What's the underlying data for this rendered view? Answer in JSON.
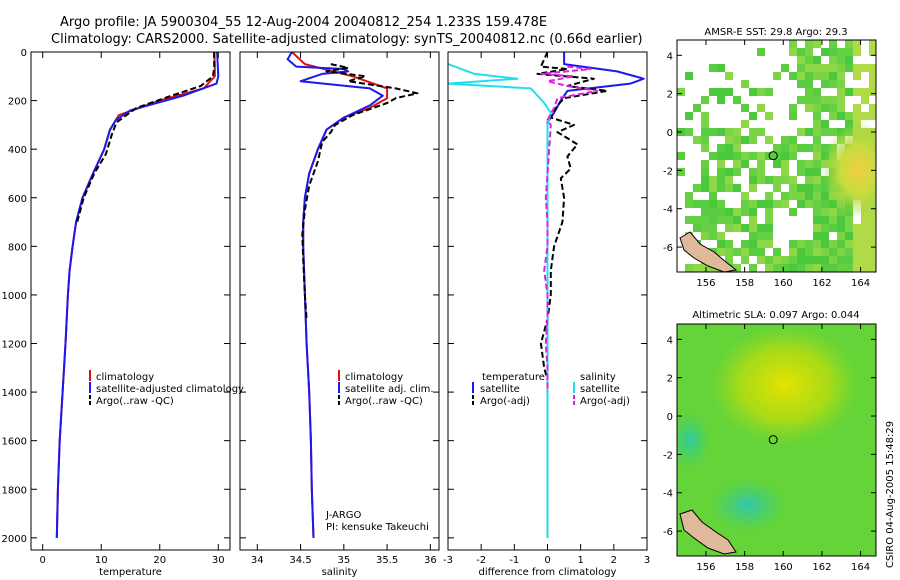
{
  "title": {
    "line1": "Argo profile: JA 5900304_55 12-Aug-2004 20040812_254 1.233S 159.478E",
    "line2": "Climatology: CARS2000. Satellite-adjusted climatology: synTS_20040812.nc (0.66d earlier)"
  },
  "colors": {
    "climatology": "#dd1111",
    "satellite": "#1a1aee",
    "argo": "#000000",
    "satellite_salinity": "#22ddee",
    "argo_salinity": "#dd22dd"
  },
  "chart_data": [
    {
      "type": "line",
      "id": "temperature",
      "xlabel": "temperature",
      "ylabel": "",
      "xlim": [
        -2,
        32
      ],
      "ylim": [
        2050,
        0
      ],
      "xticks": [
        0,
        10,
        20,
        30
      ],
      "yticks": [
        0,
        200,
        400,
        600,
        800,
        1000,
        1200,
        1400,
        1600,
        1800,
        2000
      ],
      "legend": [
        "climatology",
        "satellite-adjusted climatology",
        "Argo(..raw -QC)"
      ],
      "series": [
        {
          "name": "climatology",
          "color_key": "climatology",
          "dash": "solid",
          "points": [
            [
              29.3,
              0
            ],
            [
              29.4,
              50
            ],
            [
              29.4,
              100
            ],
            [
              27.5,
              150
            ],
            [
              20,
              200
            ],
            [
              13,
              260
            ],
            [
              11.5,
              320
            ],
            [
              10.5,
              400
            ],
            [
              8.6,
              500
            ],
            [
              6.8,
              600
            ],
            [
              5.7,
              700
            ],
            [
              5.1,
              800
            ],
            [
              4.6,
              900
            ],
            [
              4.3,
              1000
            ],
            [
              3.9,
              1200
            ],
            [
              3.4,
              1400
            ],
            [
              2.9,
              1600
            ],
            [
              2.6,
              1800
            ],
            [
              2.4,
              2000
            ]
          ]
        },
        {
          "name": "satellite-adjusted climatology",
          "color_key": "satellite",
          "dash": "solid",
          "points": [
            [
              29.8,
              0
            ],
            [
              29.9,
              50
            ],
            [
              30.0,
              100
            ],
            [
              29.7,
              130
            ],
            [
              24,
              180
            ],
            [
              15,
              240
            ],
            [
              12.5,
              280
            ],
            [
              11.5,
              320
            ],
            [
              10.5,
              400
            ],
            [
              8.6,
              500
            ],
            [
              6.8,
              600
            ],
            [
              5.7,
              700
            ],
            [
              5.1,
              800
            ],
            [
              4.6,
              900
            ],
            [
              4.3,
              1000
            ],
            [
              3.9,
              1200
            ],
            [
              3.4,
              1400
            ],
            [
              2.9,
              1600
            ],
            [
              2.6,
              1800
            ],
            [
              2.4,
              2000
            ]
          ]
        },
        {
          "name": "Argo(..raw -QC)",
          "color_key": "argo",
          "dash": "dashed",
          "points": [
            [
              29.3,
              0
            ],
            [
              29.3,
              60
            ],
            [
              29.1,
              100
            ],
            [
              27,
              140
            ],
            [
              22,
              180
            ],
            [
              16,
              230
            ],
            [
              12.6,
              290
            ],
            [
              11.8,
              340
            ],
            [
              10.8,
              420
            ],
            [
              8.8,
              500
            ],
            [
              7,
              600
            ],
            [
              5.9,
              700
            ]
          ]
        }
      ]
    },
    {
      "type": "line",
      "id": "salinity",
      "xlabel": "salinity",
      "ylabel": "",
      "xlim": [
        33.8,
        36.1
      ],
      "ylim": [
        2050,
        0
      ],
      "xticks": [
        34,
        34.5,
        35,
        35.5,
        36
      ],
      "yticks": [
        0,
        200,
        400,
        600,
        800,
        1000,
        1200,
        1400,
        1600,
        1800,
        2000
      ],
      "legend": [
        "climatology",
        "satellite adj. clim.",
        "Argo(..raw -QC)"
      ],
      "annotations": [
        "J-ARGO",
        "PI: kensuke Takeuchi"
      ],
      "series": [
        {
          "name": "climatology",
          "color_key": "climatology",
          "dash": "solid",
          "points": [
            [
              34.4,
              0
            ],
            [
              34.55,
              50
            ],
            [
              35.1,
              100
            ],
            [
              35.5,
              150
            ],
            [
              35.5,
              190
            ],
            [
              35.3,
              230
            ],
            [
              35.0,
              270
            ],
            [
              34.8,
              320
            ],
            [
              34.7,
              400
            ],
            [
              34.6,
              500
            ],
            [
              34.55,
              600
            ],
            [
              34.53,
              700
            ],
            [
              34.53,
              800
            ],
            [
              34.55,
              1000
            ],
            [
              34.57,
              1200
            ],
            [
              34.6,
              1400
            ],
            [
              34.62,
              1600
            ],
            [
              34.63,
              1800
            ],
            [
              34.65,
              2000
            ]
          ]
        },
        {
          "name": "satellite adj. clim.",
          "color_key": "satellite",
          "dash": "solid",
          "points": [
            [
              34.4,
              0
            ],
            [
              34.35,
              30
            ],
            [
              34.45,
              60
            ],
            [
              35.0,
              70
            ],
            [
              35.05,
              80
            ],
            [
              34.75,
              90
            ],
            [
              34.5,
              120
            ],
            [
              35.3,
              150
            ],
            [
              35.45,
              180
            ],
            [
              35.3,
              220
            ],
            [
              35.0,
              270
            ],
            [
              34.8,
              320
            ],
            [
              34.7,
              400
            ],
            [
              34.6,
              500
            ],
            [
              34.55,
              600
            ],
            [
              34.53,
              700
            ],
            [
              34.53,
              800
            ],
            [
              34.55,
              1000
            ],
            [
              34.57,
              1200
            ],
            [
              34.6,
              1400
            ],
            [
              34.62,
              1600
            ],
            [
              34.63,
              1800
            ],
            [
              34.65,
              2000
            ]
          ]
        },
        {
          "name": "Argo(..raw -QC)",
          "color_key": "argo",
          "dash": "dashed",
          "points": [
            [
              34.85,
              50
            ],
            [
              35.05,
              65
            ],
            [
              34.8,
              80
            ],
            [
              35.25,
              100
            ],
            [
              35.05,
              120
            ],
            [
              35.6,
              150
            ],
            [
              35.85,
              170
            ],
            [
              35.6,
              190
            ],
            [
              35.5,
              210
            ],
            [
              35.1,
              260
            ],
            [
              34.9,
              300
            ],
            [
              34.85,
              330
            ],
            [
              34.75,
              370
            ],
            [
              34.7,
              450
            ],
            [
              34.6,
              550
            ],
            [
              34.55,
              650
            ],
            [
              34.52,
              750
            ],
            [
              34.53,
              850
            ],
            [
              34.55,
              1000
            ],
            [
              34.57,
              1100
            ]
          ]
        }
      ]
    },
    {
      "type": "line",
      "id": "difference",
      "xlabel": "difference from climatology",
      "ylabel": "",
      "xlim": [
        -3,
        3
      ],
      "ylim": [
        2050,
        0
      ],
      "xticks": [
        -3,
        -2,
        -1,
        0,
        1,
        2,
        3
      ],
      "yticks": [
        0,
        200,
        400,
        600,
        800,
        1000,
        1200,
        1400,
        1600,
        1800,
        2000
      ],
      "legend_temperature_title": "temperature",
      "legend_salinity_title": "salinity",
      "legend": [
        "satellite",
        "Argo(-adj)",
        "satellite",
        "Argo(-adj)"
      ],
      "series": [
        {
          "name": "temperature satellite",
          "color_key": "satellite",
          "dash": "solid",
          "points": [
            [
              0.5,
              0
            ],
            [
              0.5,
              50
            ],
            [
              2.1,
              80
            ],
            [
              2.9,
              110
            ],
            [
              2.5,
              130
            ],
            [
              0.6,
              160
            ],
            [
              0.4,
              200
            ],
            [
              0.2,
              250
            ],
            [
              0,
              290
            ],
            [
              0,
              400
            ],
            [
              0,
              600
            ],
            [
              0,
              1000
            ],
            [
              0,
              1500
            ],
            [
              0,
              2000
            ]
          ]
        },
        {
          "name": "temperature Argo(-adj)",
          "color_key": "argo",
          "dash": "dashed",
          "points": [
            [
              0,
              0
            ],
            [
              -0.2,
              60
            ],
            [
              0.6,
              70
            ],
            [
              -0.3,
              90
            ],
            [
              1.4,
              110
            ],
            [
              0.6,
              140
            ],
            [
              1.8,
              160
            ],
            [
              0.5,
              190
            ],
            [
              0.3,
              220
            ],
            [
              0.1,
              270
            ],
            [
              0.8,
              300
            ],
            [
              0.3,
              330
            ],
            [
              0.9,
              380
            ],
            [
              0.6,
              430
            ],
            [
              0.7,
              480
            ],
            [
              0.4,
              520
            ],
            [
              0.5,
              600
            ],
            [
              0.45,
              700
            ],
            [
              0.2,
              800
            ],
            [
              0.1,
              900
            ],
            [
              0.1,
              1000
            ],
            [
              0,
              1100
            ],
            [
              -0.2,
              1200
            ],
            [
              -0.1,
              1300
            ],
            [
              0,
              1350
            ]
          ]
        },
        {
          "name": "salinity satellite",
          "color_key": "satellite_salinity",
          "dash": "solid",
          "points": [
            [
              -3,
              50
            ],
            [
              -2.2,
              90
            ],
            [
              -0.9,
              110
            ],
            [
              -3,
              130
            ],
            [
              -0.5,
              150
            ],
            [
              -0.1,
              210
            ],
            [
              0.1,
              250
            ],
            [
              0,
              300
            ],
            [
              0,
              400
            ],
            [
              0,
              600
            ],
            [
              0,
              1000
            ],
            [
              0,
              1500
            ],
            [
              0,
              2000
            ]
          ]
        },
        {
          "name": "salinity Argo(-adj)",
          "color_key": "argo_salinity",
          "dash": "dashed",
          "points": [
            [
              0.6,
              60
            ],
            [
              1.3,
              70
            ],
            [
              -0.2,
              90
            ],
            [
              0.8,
              100
            ],
            [
              0,
              120
            ],
            [
              0.6,
              140
            ],
            [
              1.5,
              160
            ],
            [
              0.3,
              190
            ],
            [
              0.2,
              230
            ],
            [
              0,
              280
            ],
            [
              0.1,
              300
            ],
            [
              0.05,
              400
            ],
            [
              0,
              500
            ],
            [
              -0.05,
              600
            ],
            [
              0,
              700
            ],
            [
              0,
              800
            ],
            [
              -0.1,
              900
            ],
            [
              0,
              1000
            ],
            [
              0,
              1100
            ],
            [
              -0.05,
              1200
            ],
            [
              0,
              1300
            ],
            [
              0,
              1400
            ]
          ]
        }
      ]
    },
    {
      "type": "heatmap",
      "id": "sst-map",
      "title": "AMSR-E SST: 29.8 Argo: 29.3",
      "xlim": [
        154.5,
        164.8
      ],
      "ylim": [
        -7.3,
        4.8
      ],
      "xticks": [
        156,
        158,
        160,
        162,
        164
      ],
      "yticks": [
        4,
        2,
        0,
        -2,
        -4,
        -6
      ],
      "float_position": [
        159.478,
        -1.233
      ]
    },
    {
      "type": "heatmap",
      "id": "sla-map",
      "title": "Altimetric SLA: 0.097 Argo: 0.044",
      "xlim": [
        154.5,
        164.8
      ],
      "ylim": [
        -7.3,
        4.8
      ],
      "xticks": [
        156,
        158,
        160,
        162,
        164
      ],
      "yticks": [
        4,
        2,
        0,
        -2,
        -4,
        -6
      ],
      "float_position": [
        159.478,
        -1.233
      ]
    }
  ],
  "credit": "CSIRO 04-Aug-2005 15:48:29",
  "icons": {
    "float_marker": "circle-marker",
    "land": "coastline-shape"
  }
}
